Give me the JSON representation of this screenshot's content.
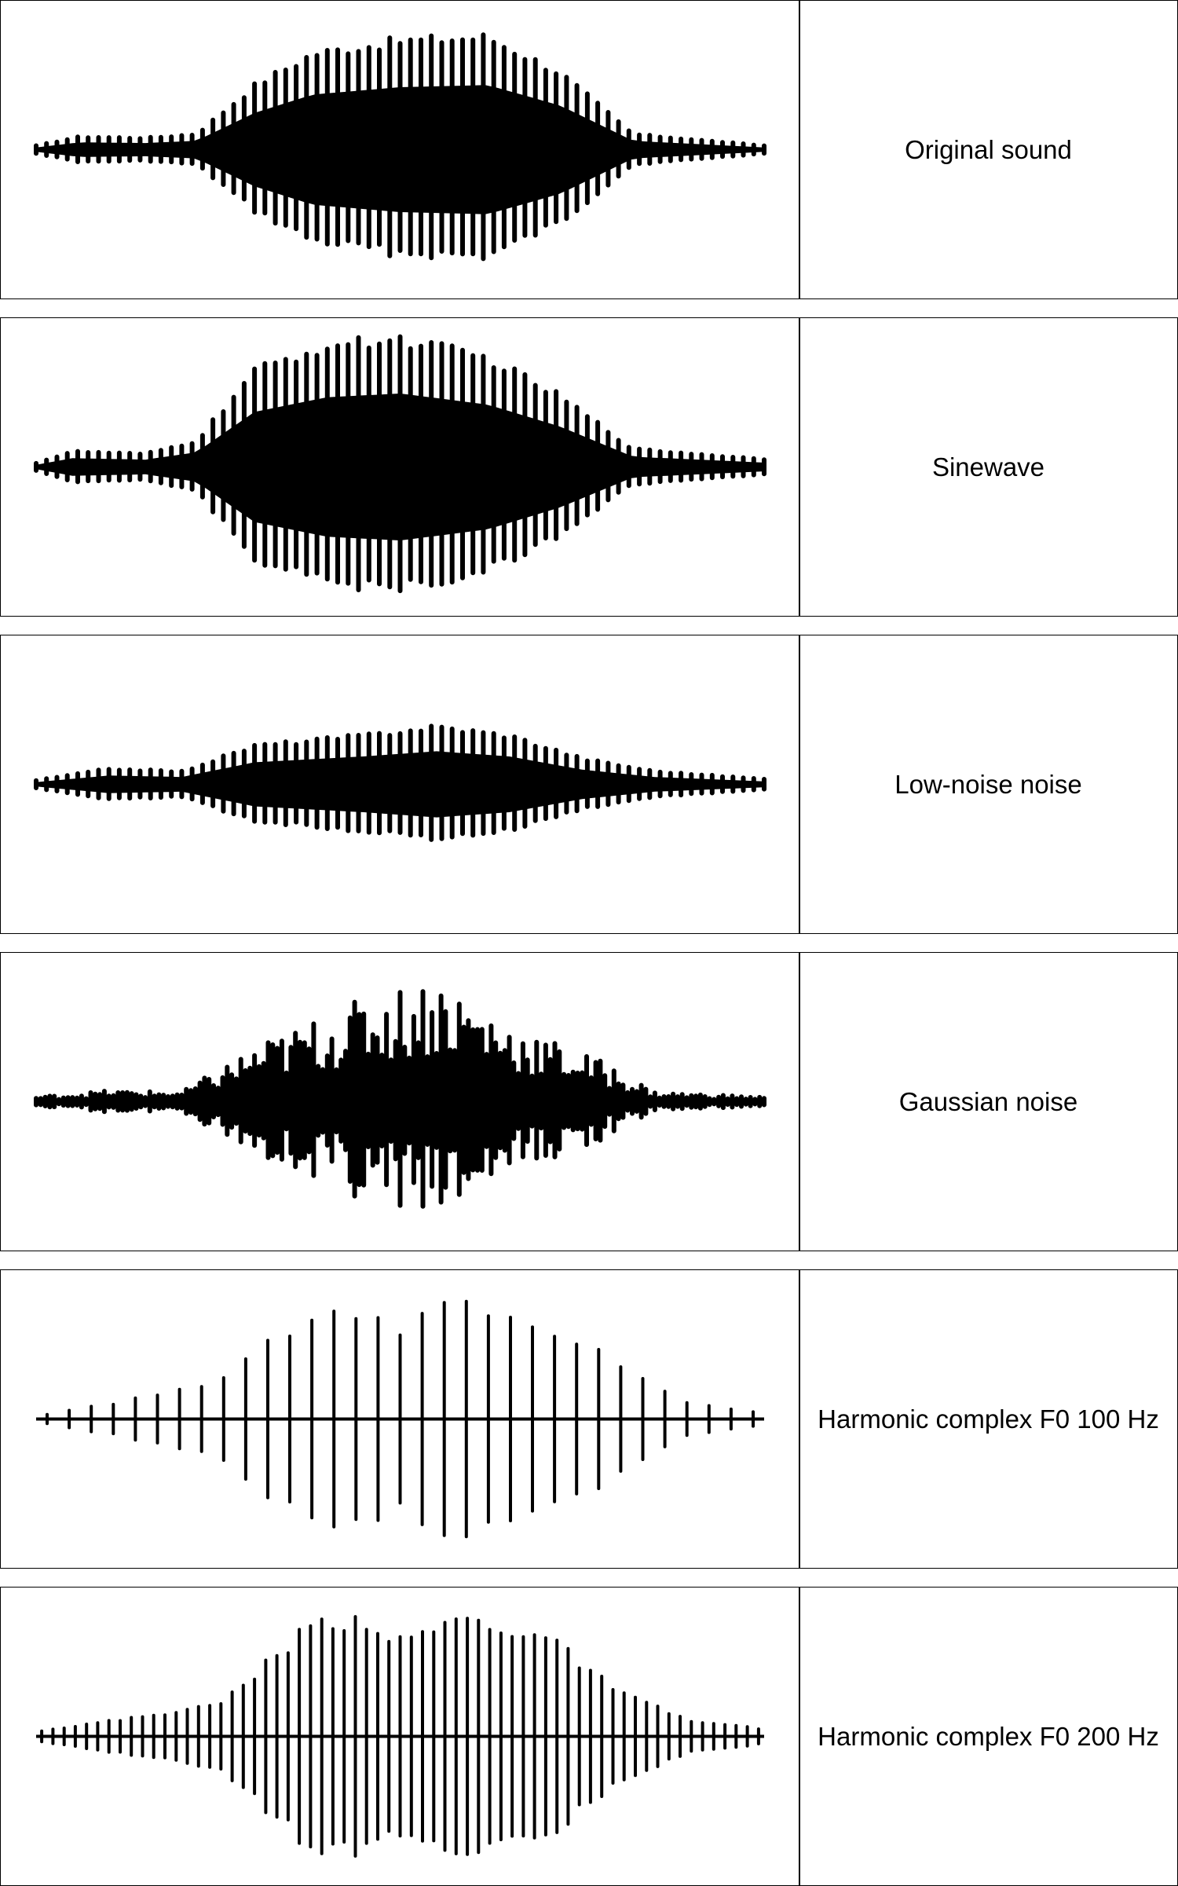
{
  "panels": [
    {
      "id": "original",
      "label": "Original sound",
      "type": "dense",
      "envelope": [
        [
          0,
          0.03
        ],
        [
          0.06,
          0.1
        ],
        [
          0.15,
          0.09
        ],
        [
          0.22,
          0.12
        ],
        [
          0.3,
          0.5
        ],
        [
          0.38,
          0.75
        ],
        [
          0.5,
          0.85
        ],
        [
          0.62,
          0.88
        ],
        [
          0.72,
          0.6
        ],
        [
          0.82,
          0.12
        ],
        [
          1,
          0.03
        ]
      ]
    },
    {
      "id": "sinewave",
      "label": "Sinewave",
      "type": "dense",
      "envelope": [
        [
          0,
          0.03
        ],
        [
          0.05,
          0.12
        ],
        [
          0.15,
          0.1
        ],
        [
          0.22,
          0.2
        ],
        [
          0.3,
          0.75
        ],
        [
          0.4,
          0.95
        ],
        [
          0.5,
          1.0
        ],
        [
          0.62,
          0.85
        ],
        [
          0.72,
          0.55
        ],
        [
          0.82,
          0.14
        ],
        [
          1,
          0.06
        ]
      ]
    },
    {
      "id": "lownoise",
      "label": "Low-noise noise",
      "type": "dense",
      "envelope": [
        [
          0,
          0.03
        ],
        [
          0.1,
          0.12
        ],
        [
          0.2,
          0.1
        ],
        [
          0.3,
          0.3
        ],
        [
          0.45,
          0.38
        ],
        [
          0.55,
          0.45
        ],
        [
          0.65,
          0.38
        ],
        [
          0.75,
          0.2
        ],
        [
          0.85,
          0.1
        ],
        [
          1,
          0.04
        ]
      ]
    },
    {
      "id": "gaussian",
      "label": "Gaussian noise",
      "type": "noisy",
      "envelope": [
        [
          0,
          0.03
        ],
        [
          0.1,
          0.07
        ],
        [
          0.2,
          0.06
        ],
        [
          0.3,
          0.35
        ],
        [
          0.45,
          0.65
        ],
        [
          0.55,
          0.8
        ],
        [
          0.65,
          0.5
        ],
        [
          0.78,
          0.25
        ],
        [
          0.85,
          0.06
        ],
        [
          1,
          0.03
        ]
      ]
    },
    {
      "id": "harmonic100",
      "label": "Harmonic complex F0 100 Hz",
      "type": "pulses",
      "pulse_count": 33,
      "envelope": [
        [
          0,
          0.02
        ],
        [
          0.1,
          0.12
        ],
        [
          0.25,
          0.3
        ],
        [
          0.4,
          0.95
        ],
        [
          0.5,
          0.7
        ],
        [
          0.55,
          0.95
        ],
        [
          0.7,
          0.75
        ],
        [
          0.8,
          0.45
        ],
        [
          0.9,
          0.12
        ],
        [
          1,
          0.05
        ]
      ]
    },
    {
      "id": "harmonic200",
      "label": "Harmonic complex F0 200 Hz",
      "type": "pulses",
      "pulse_count": 65,
      "envelope": [
        [
          0,
          0.04
        ],
        [
          0.1,
          0.12
        ],
        [
          0.25,
          0.25
        ],
        [
          0.38,
          0.9
        ],
        [
          0.45,
          0.95
        ],
        [
          0.5,
          0.75
        ],
        [
          0.58,
          0.95
        ],
        [
          0.7,
          0.8
        ],
        [
          0.8,
          0.35
        ],
        [
          0.9,
          0.12
        ],
        [
          1,
          0.06
        ]
      ]
    }
  ]
}
